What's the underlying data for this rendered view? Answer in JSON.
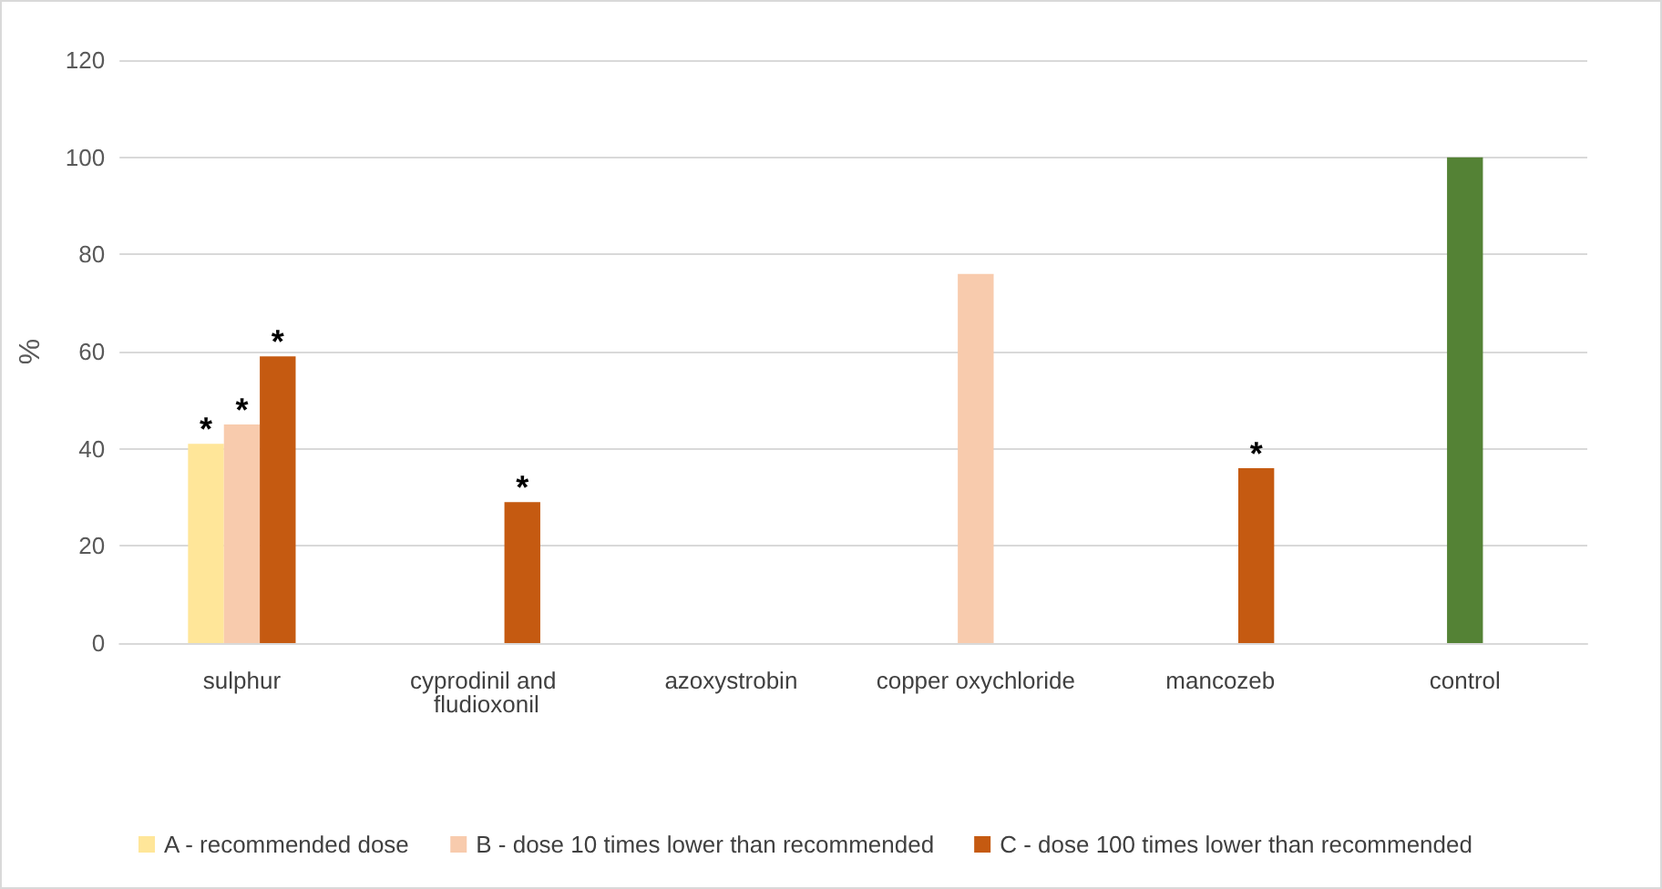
{
  "chart_data": {
    "type": "bar",
    "ylabel": "%",
    "categories": [
      "sulphur",
      "cyprodinil and fludioxonil",
      "azoxystrobin",
      "copper oxychloride",
      "mancozeb",
      "control"
    ],
    "series": [
      {
        "name": "A - recommended dose",
        "color": "#ffe699",
        "values": [
          41,
          null,
          null,
          null,
          null,
          null
        ],
        "value_labels": [
          "*",
          null,
          null,
          null,
          null,
          null
        ]
      },
      {
        "name": "B - dose 10 times lower than recommended",
        "color": "#f8cbad",
        "colors": [
          "#f8cbad",
          "#f8cbad",
          "#f8cbad",
          "#f8cbad",
          "#f8cbad",
          "#548235"
        ],
        "values": [
          45,
          null,
          null,
          76,
          null,
          100
        ],
        "value_labels": [
          "*",
          null,
          null,
          null,
          null,
          null
        ]
      },
      {
        "name": "C - dose 100 times lower than recommended",
        "color": "#c55a11",
        "values": [
          59,
          29,
          null,
          null,
          36,
          null
        ],
        "value_labels": [
          "*",
          "*",
          null,
          null,
          "*",
          null
        ]
      }
    ],
    "ylim": [
      0,
      120
    ],
    "yticks": [
      0,
      20,
      40,
      60,
      80,
      100,
      120
    ],
    "grid": "y",
    "legend": "bottom left"
  }
}
